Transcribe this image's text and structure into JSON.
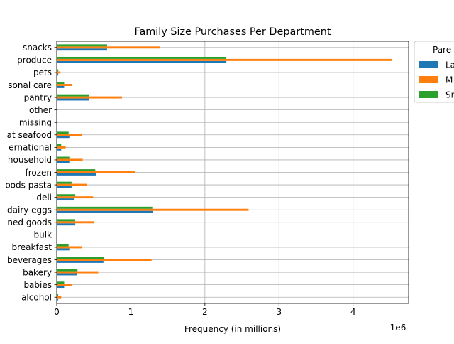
{
  "chart_data": {
    "type": "bar",
    "orientation": "horizontal",
    "title": "Family Size Purchases Per Department",
    "xlabel": "Frequency (in millions)",
    "ylabel": "",
    "x_offset_label": "1e6",
    "xlim": [
      0,
      4.75
    ],
    "xticks": [
      0,
      1,
      2,
      3,
      4
    ],
    "grid": true,
    "legend_placement": "outside-top-right",
    "legend_title": "Pare",
    "categories": [
      "alcohol",
      "babies",
      "bakery",
      "beverages",
      "breakfast",
      "bulk",
      "canned goods",
      "dairy eggs",
      "deli",
      "dry goods pasta",
      "frozen",
      "household",
      "international",
      "meat seafood",
      "missing",
      "other",
      "pantry",
      "personal care",
      "pets",
      "produce",
      "snacks"
    ],
    "category_labels": [
      "alcohol",
      "babies",
      "bakery",
      "beverages",
      "breakfast",
      "bulk",
      "ned goods",
      "dairy eggs",
      "deli",
      "oods pasta",
      "frozen",
      "household",
      "ernational",
      "at seafood",
      "missing",
      "other",
      "pantry",
      "sonal care",
      "pets",
      "produce",
      "snacks"
    ],
    "series": [
      {
        "name": "La",
        "color": "#1f77b4",
        "values": [
          0.02,
          0.1,
          0.27,
          0.63,
          0.17,
          0.01,
          0.25,
          1.3,
          0.24,
          0.2,
          0.53,
          0.17,
          0.06,
          0.17,
          0.01,
          0.01,
          0.44,
          0.1,
          0.02,
          2.29,
          0.68
        ]
      },
      {
        "name": "M",
        "color": "#ff7f0e",
        "values": [
          0.06,
          0.2,
          0.56,
          1.28,
          0.34,
          0.01,
          0.5,
          2.59,
          0.49,
          0.41,
          1.06,
          0.35,
          0.12,
          0.34,
          0.01,
          0.01,
          0.88,
          0.21,
          0.05,
          4.52,
          1.39
        ]
      },
      {
        "name": "Sn",
        "color": "#2ca02c",
        "values": [
          0.02,
          0.1,
          0.28,
          0.64,
          0.16,
          0.01,
          0.25,
          1.29,
          0.25,
          0.2,
          0.52,
          0.17,
          0.06,
          0.16,
          0.01,
          0.01,
          0.44,
          0.1,
          0.02,
          2.28,
          0.68
        ]
      }
    ]
  }
}
